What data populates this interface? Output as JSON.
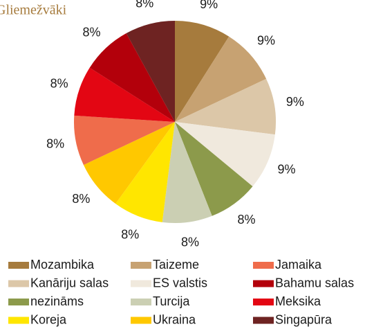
{
  "chart_data": {
    "type": "pie",
    "title": "Gliemežvāki",
    "categories": [
      "Mozambika",
      "Taizeme",
      "Kanāriju salas",
      "ES valstis",
      "nezināms",
      "Turcija",
      "Koreja",
      "Ukraina",
      "Jamaika",
      "Meksika",
      "Bahamu salas",
      "Singapūra"
    ],
    "values": [
      9,
      9,
      9,
      9,
      8,
      8,
      8,
      8,
      8,
      8,
      8,
      8
    ],
    "value_labels": [
      "9%",
      "9%",
      "9%",
      "9%",
      "8%",
      "8%",
      "8%",
      "8%",
      "8%",
      "8%",
      "8%",
      "8%"
    ],
    "colors": [
      "#a67b3d",
      "#c7a272",
      "#dcc7a8",
      "#f0e9dd",
      "#8c9a4b",
      "#cbcfb3",
      "#ffe600",
      "#ffc800",
      "#ef6c4b",
      "#e30613",
      "#b3000b",
      "#6e2322"
    ]
  }
}
